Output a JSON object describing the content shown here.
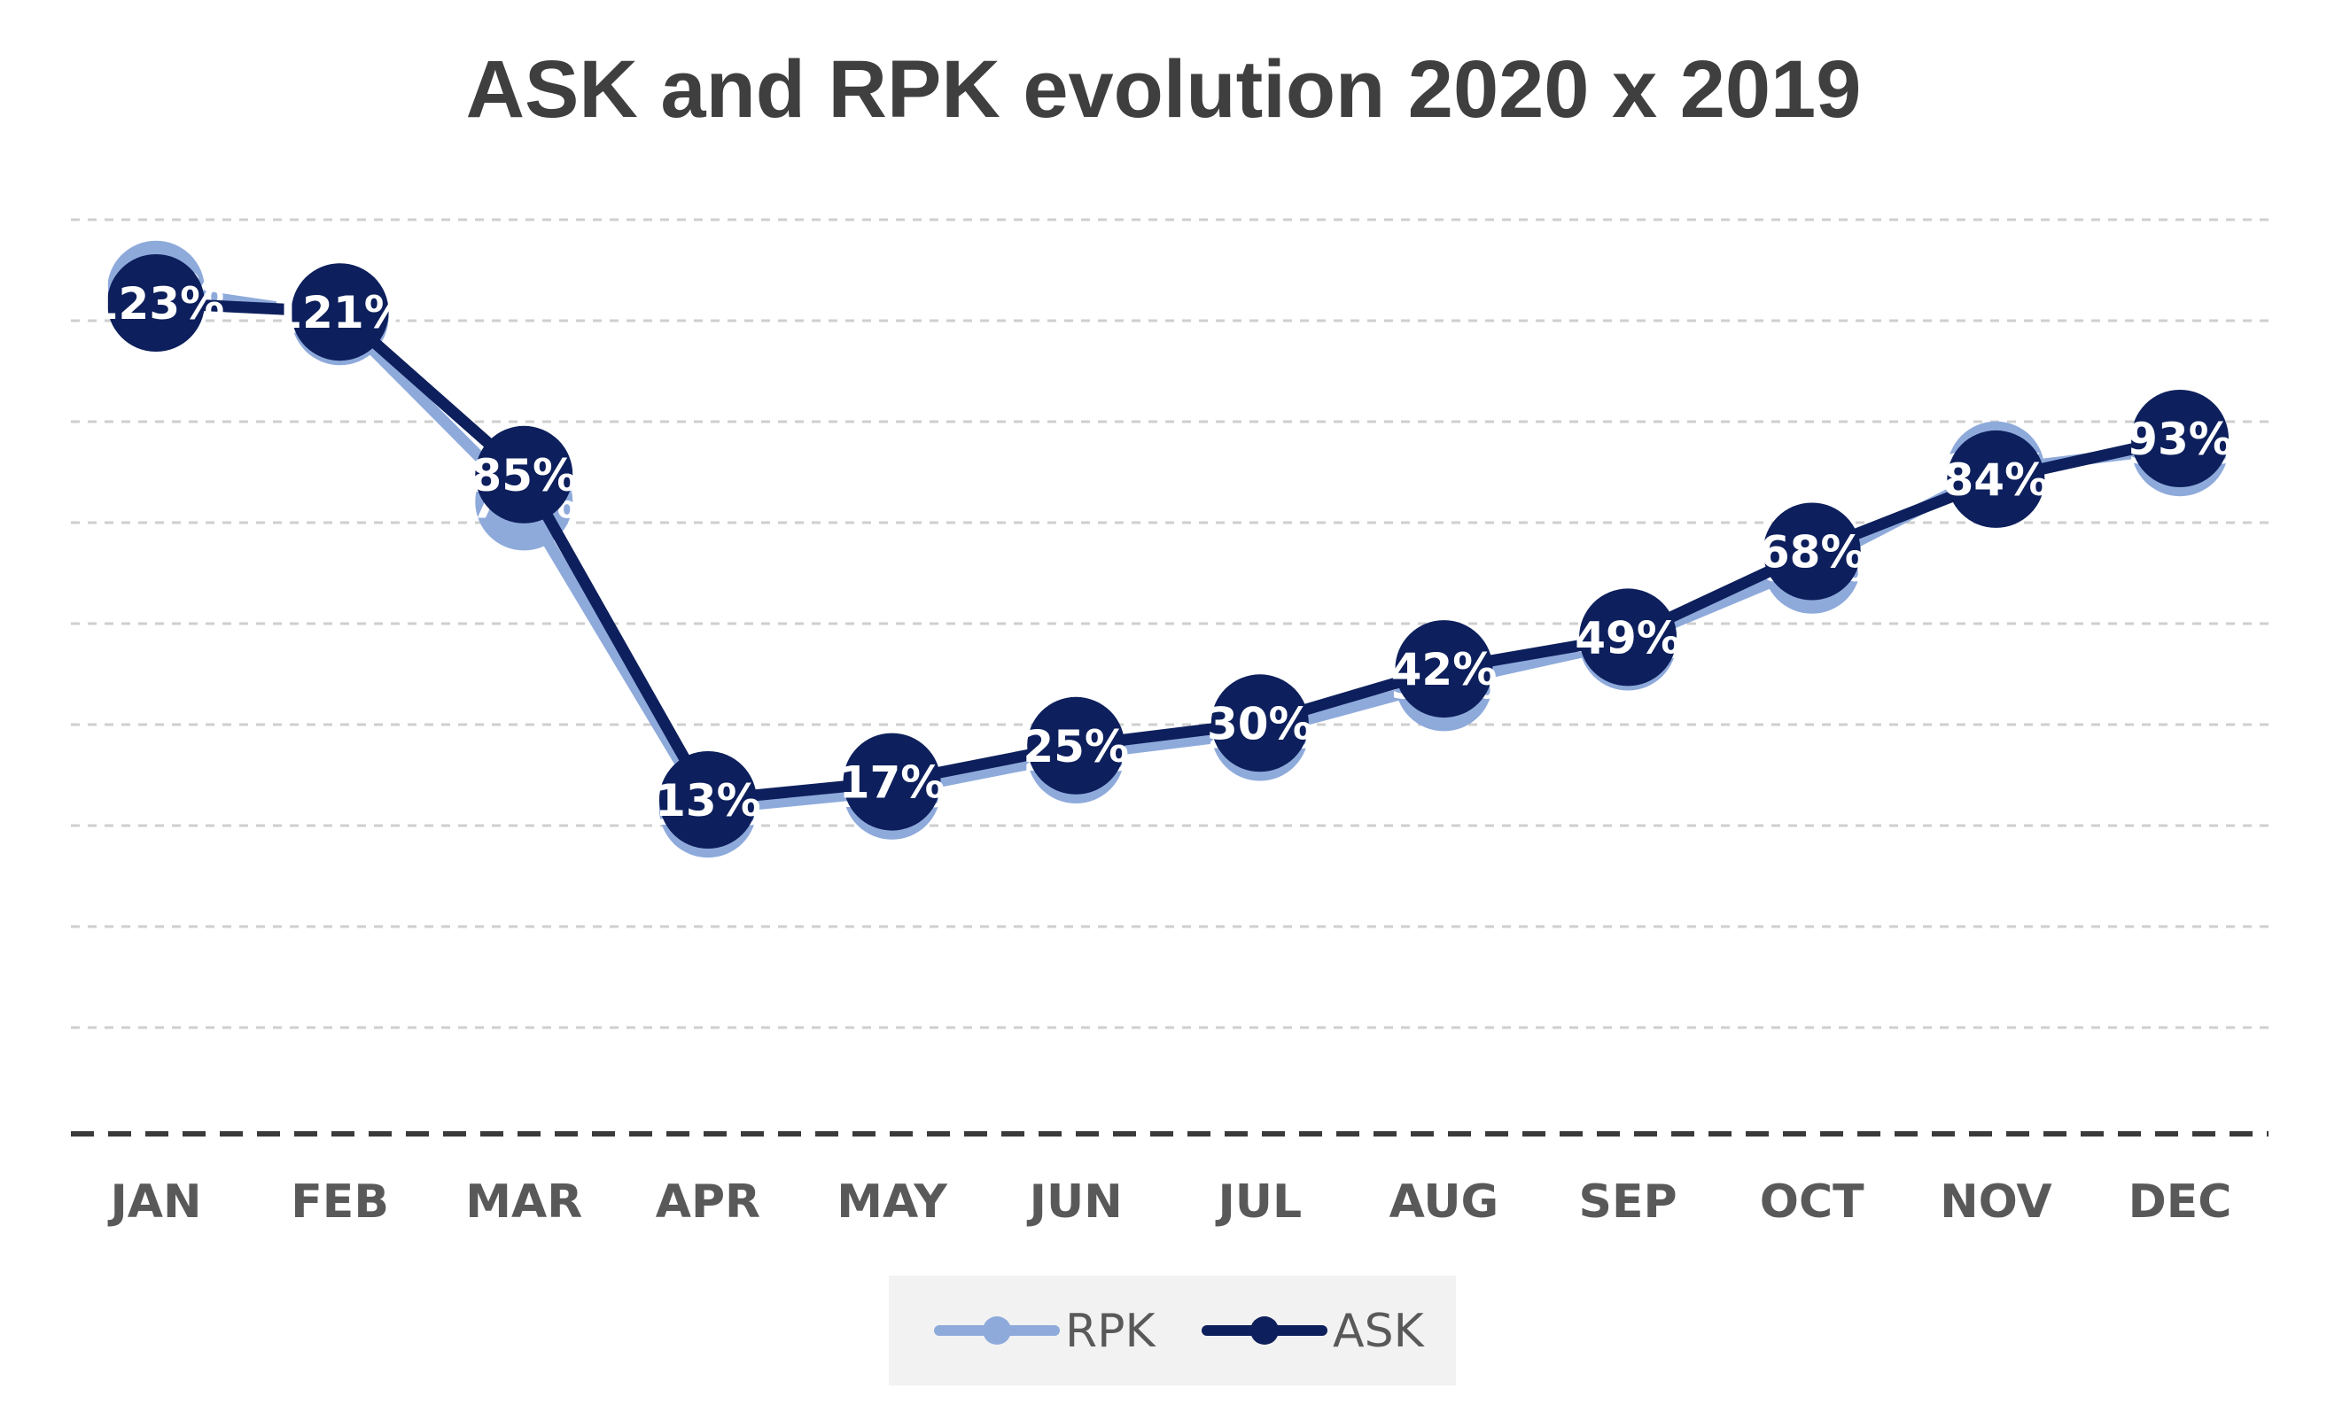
{
  "chart_data": {
    "type": "line",
    "title": "ASK and RPK evolution 2020 x 2019",
    "xlabel": "",
    "ylabel": "",
    "categories": [
      "JAN",
      "FEB",
      "MAR",
      "APR",
      "MAY",
      "JUN",
      "JUL",
      "AUG",
      "SEP",
      "OCT",
      "NOV",
      "DEC"
    ],
    "series": [
      {
        "name": "RPK",
        "color": "#8eaadb",
        "values": [
          126,
          120,
          79,
          11,
          15,
          23,
          28,
          39,
          48,
          65,
          86,
          91
        ],
        "labels": [
          "126%",
          "120%",
          "79%",
          "11%",
          "15%",
          "23%",
          "28%",
          "39%",
          "48%",
          "65%",
          "86%",
          "91%"
        ]
      },
      {
        "name": "ASK",
        "color": "#0d1f5c",
        "values": [
          123,
          121,
          85,
          13,
          17,
          25,
          30,
          42,
          49,
          68,
          84,
          93
        ],
        "labels": [
          "123%",
          "121%",
          "85%",
          "13%",
          "17%",
          "25%",
          "30%",
          "42%",
          "49%",
          "68%",
          "84%",
          "93%"
        ]
      }
    ],
    "y_axis_visible": false,
    "grid": true,
    "gridline_style": "dashed",
    "baseline_style": "dashed",
    "legend": "bottom-center",
    "data_labels": "inside-markers"
  }
}
